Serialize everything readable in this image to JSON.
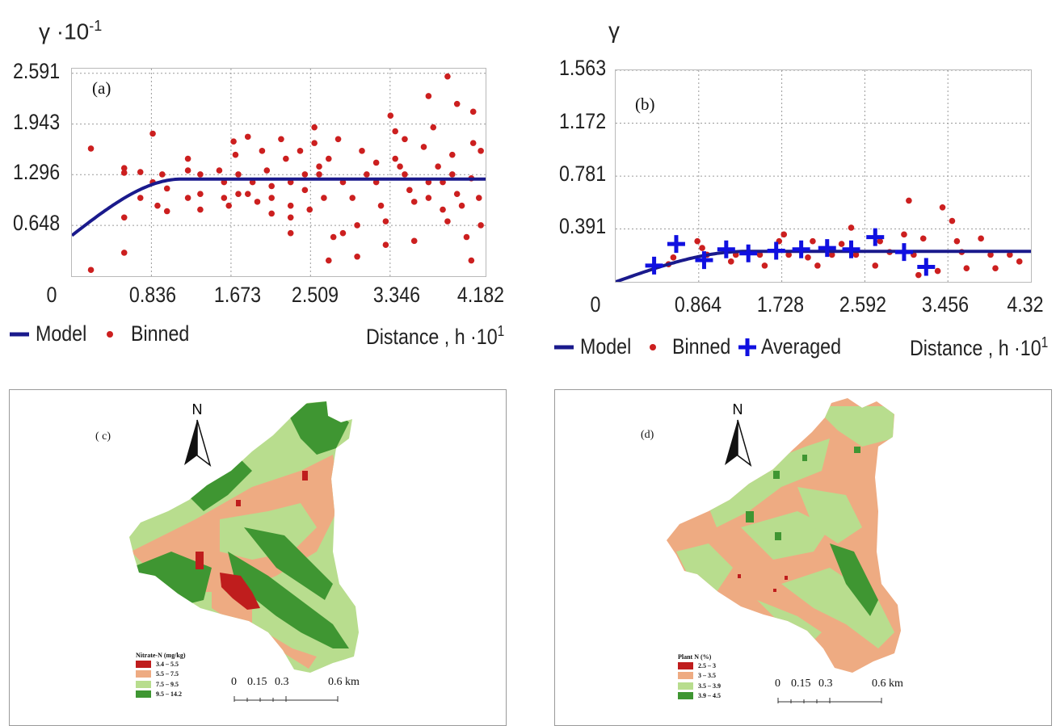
{
  "chart_data": [
    {
      "type": "scatter",
      "panel_label": "(a)",
      "ylabel": "γ ·10",
      "ylabel_exp": "-1",
      "xlabel": "Distance , h ·10",
      "xlabel_exp": "1",
      "xticks": [
        "0",
        "0.836",
        "1.673",
        "2.509",
        "3.346",
        "4.182"
      ],
      "yticks": [
        "2.591",
        "1.943",
        "1.296",
        "0.648"
      ],
      "xlim": [
        0,
        4.35
      ],
      "ylim": [
        0,
        2.65
      ],
      "grid": true,
      "legend": [
        "Model",
        "Binned"
      ],
      "legend_position": "bottom",
      "model": {
        "nugget": 0.52,
        "sill": 1.24,
        "range": 1.15
      },
      "series": [
        {
          "name": "Binned",
          "color": "#cc1f1f",
          "marker": "dot",
          "points": [
            [
              0.2,
              1.63
            ],
            [
              0.2,
              0.08
            ],
            [
              0.55,
              1.38
            ],
            [
              0.55,
              1.32
            ],
            [
              0.55,
              0.75
            ],
            [
              0.55,
              0.3
            ],
            [
              0.72,
              1.33
            ],
            [
              0.72,
              1.0
            ],
            [
              0.85,
              1.82
            ],
            [
              0.85,
              1.2
            ],
            [
              0.9,
              0.9
            ],
            [
              0.95,
              1.3
            ],
            [
              1.0,
              1.12
            ],
            [
              1.0,
              0.83
            ],
            [
              1.22,
              1.5
            ],
            [
              1.22,
              1.35
            ],
            [
              1.22,
              1.0
            ],
            [
              1.35,
              1.3
            ],
            [
              1.35,
              1.05
            ],
            [
              1.35,
              0.85
            ],
            [
              1.55,
              1.35
            ],
            [
              1.6,
              1.2
            ],
            [
              1.6,
              1.0
            ],
            [
              1.65,
              0.9
            ],
            [
              1.7,
              1.72
            ],
            [
              1.72,
              1.55
            ],
            [
              1.75,
              1.3
            ],
            [
              1.75,
              1.05
            ],
            [
              1.85,
              1.78
            ],
            [
              1.9,
              1.2
            ],
            [
              1.95,
              0.95
            ],
            [
              2.0,
              1.6
            ],
            [
              2.05,
              1.35
            ],
            [
              2.1,
              1.15
            ],
            [
              2.1,
              1.0
            ],
            [
              2.1,
              0.8
            ],
            [
              2.2,
              1.75
            ],
            [
              2.25,
              1.5
            ],
            [
              2.3,
              1.2
            ],
            [
              2.3,
              0.9
            ],
            [
              2.3,
              0.75
            ],
            [
              2.4,
              1.6
            ],
            [
              2.45,
              1.3
            ],
            [
              2.45,
              1.1
            ],
            [
              2.5,
              0.85
            ],
            [
              2.55,
              1.9
            ],
            [
              2.55,
              1.7
            ],
            [
              2.6,
              1.4
            ],
            [
              2.6,
              1.3
            ],
            [
              2.65,
              1.0
            ],
            [
              2.7,
              1.5
            ],
            [
              2.75,
              0.5
            ],
            [
              2.7,
              0.2
            ],
            [
              2.8,
              1.75
            ],
            [
              2.85,
              1.2
            ],
            [
              2.95,
              1.0
            ],
            [
              3.0,
              0.65
            ],
            [
              3.0,
              0.25
            ],
            [
              3.05,
              1.6
            ],
            [
              3.1,
              1.3
            ],
            [
              3.2,
              1.45
            ],
            [
              3.2,
              1.2
            ],
            [
              3.25,
              0.9
            ],
            [
              3.3,
              0.4
            ],
            [
              3.3,
              0.7
            ],
            [
              3.35,
              2.05
            ],
            [
              3.4,
              1.85
            ],
            [
              3.4,
              1.5
            ],
            [
              3.45,
              1.4
            ],
            [
              3.5,
              1.3
            ],
            [
              3.55,
              1.1
            ],
            [
              3.6,
              0.95
            ],
            [
              3.6,
              0.45
            ],
            [
              3.7,
              1.65
            ],
            [
              3.75,
              1.2
            ],
            [
              3.75,
              1.0
            ],
            [
              3.8,
              1.9
            ],
            [
              3.85,
              1.4
            ],
            [
              3.9,
              1.2
            ],
            [
              3.9,
              0.85
            ],
            [
              3.95,
              0.7
            ],
            [
              4.0,
              1.55
            ],
            [
              4.0,
              1.3
            ],
            [
              4.05,
              1.05
            ],
            [
              4.05,
              2.2
            ],
            [
              4.1,
              0.9
            ],
            [
              4.15,
              0.5
            ],
            [
              4.2,
              1.25
            ],
            [
              4.2,
              0.2
            ],
            [
              4.22,
              1.7
            ],
            [
              4.28,
              1.0
            ],
            [
              4.3,
              1.6
            ],
            [
              4.3,
              0.65
            ],
            [
              3.95,
              2.55
            ],
            [
              4.22,
              2.1
            ],
            [
              3.75,
              2.3
            ],
            [
              3.5,
              1.75
            ],
            [
              2.85,
              0.55
            ],
            [
              2.3,
              0.55
            ],
            [
              1.85,
              1.05
            ]
          ]
        }
      ]
    },
    {
      "type": "scatter",
      "panel_label": "(b)",
      "ylabel": "γ",
      "xlabel": "Distance , h ·10",
      "xlabel_exp": "1",
      "xticks": [
        "0",
        "0.864",
        "1.728",
        "2.592",
        "3.456",
        "4.32"
      ],
      "yticks": [
        "1.563",
        "1.172",
        "0.781",
        "0.391"
      ],
      "xlim": [
        0,
        4.32
      ],
      "ylim": [
        0,
        1.563
      ],
      "grid": true,
      "legend": [
        "Model",
        "Binned",
        "Averaged"
      ],
      "legend_position": "bottom",
      "model": {
        "nugget": 0.0,
        "sill": 0.225,
        "range": 1.35
      },
      "series": [
        {
          "name": "Binned",
          "color": "#cc1f1f",
          "marker": "dot",
          "points": [
            [
              0.55,
              0.13
            ],
            [
              0.6,
              0.18
            ],
            [
              0.85,
              0.3
            ],
            [
              0.9,
              0.25
            ],
            [
              0.95,
              0.2
            ],
            [
              1.2,
              0.15
            ],
            [
              1.25,
              0.2
            ],
            [
              1.5,
              0.2
            ],
            [
              1.55,
              0.12
            ],
            [
              1.7,
              0.3
            ],
            [
              1.75,
              0.35
            ],
            [
              1.8,
              0.2
            ],
            [
              2.0,
              0.18
            ],
            [
              2.05,
              0.3
            ],
            [
              2.1,
              0.12
            ],
            [
              2.25,
              0.2
            ],
            [
              2.35,
              0.28
            ],
            [
              2.45,
              0.4
            ],
            [
              2.5,
              0.2
            ],
            [
              2.7,
              0.12
            ],
            [
              2.75,
              0.3
            ],
            [
              2.85,
              0.22
            ],
            [
              3.0,
              0.35
            ],
            [
              3.05,
              0.6
            ],
            [
              3.1,
              0.2
            ],
            [
              3.15,
              0.05
            ],
            [
              3.2,
              0.32
            ],
            [
              3.35,
              0.08
            ],
            [
              3.4,
              0.55
            ],
            [
              3.5,
              0.45
            ],
            [
              3.55,
              0.3
            ],
            [
              3.6,
              0.22
            ],
            [
              3.8,
              0.32
            ],
            [
              3.9,
              0.2
            ],
            [
              3.95,
              0.1
            ],
            [
              4.1,
              0.2
            ],
            [
              4.2,
              0.15
            ],
            [
              3.65,
              0.1
            ]
          ]
        },
        {
          "name": "Averaged",
          "color": "#1010e0",
          "marker": "plus",
          "points": [
            [
              0.4,
              0.12
            ],
            [
              0.63,
              0.28
            ],
            [
              0.92,
              0.16
            ],
            [
              1.15,
              0.24
            ],
            [
              1.38,
              0.21
            ],
            [
              1.67,
              0.23
            ],
            [
              1.93,
              0.24
            ],
            [
              2.2,
              0.25
            ],
            [
              2.45,
              0.24
            ],
            [
              2.7,
              0.33
            ],
            [
              3.0,
              0.22
            ],
            [
              3.23,
              0.11
            ]
          ]
        }
      ]
    }
  ],
  "maps": [
    {
      "panel_label": "( c)",
      "north": "N",
      "legend_title": "Nitrate-N (mg/kg)",
      "legend_items": [
        {
          "label": "3.4 – 5.5",
          "color": "#bf1d1d"
        },
        {
          "label": "5.5 – 7.5",
          "color": "#eeab82"
        },
        {
          "label": "7.5 – 9.5",
          "color": "#b8dd8e"
        },
        {
          "label": "9.5 – 14.2",
          "color": "#3f9632"
        }
      ],
      "scale_labels": [
        "0",
        "0.15",
        "0.3",
        "0.6 km"
      ]
    },
    {
      "panel_label": "(d)",
      "north": "N",
      "legend_title": "Plant N (%)",
      "legend_items": [
        {
          "label": "2.5 – 3",
          "color": "#bf1d1d"
        },
        {
          "label": "3 – 3.5",
          "color": "#eeab82"
        },
        {
          "label": "3.5 – 3.9",
          "color": "#b8dd8e"
        },
        {
          "label": "3.9 – 4.5",
          "color": "#3f9632"
        }
      ],
      "scale_labels": [
        "0",
        "0.15",
        "0.3",
        "0.6 km"
      ]
    }
  ]
}
